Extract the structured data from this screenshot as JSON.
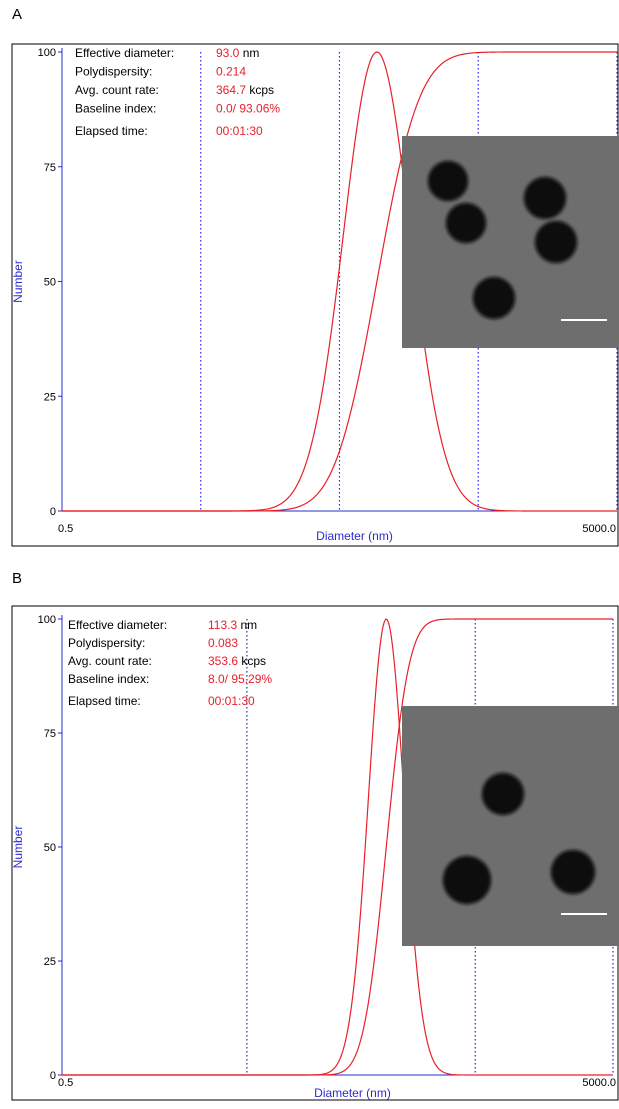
{
  "chart_data": [
    {
      "panel": "A",
      "type": "line",
      "xlabel": "Diameter (nm)",
      "ylabel": "Number",
      "x_scale": "log",
      "xlim": [
        0.5,
        5000.0
      ],
      "x_tick_labels": [
        "0.5",
        "5000.0"
      ],
      "ylim": [
        0,
        100
      ],
      "y_ticks": [
        0,
        25,
        50,
        75,
        100
      ],
      "info": [
        {
          "key": "Effective diameter:",
          "value": "93.0",
          "unit": "nm"
        },
        {
          "key": "Polydispersity:",
          "value": "0.214",
          "unit": ""
        },
        {
          "key": "Avg. count rate:",
          "value": "364.7",
          "unit": "kcps"
        },
        {
          "key": "Baseline index:",
          "value": "0.0/ 93.06%",
          "unit": ""
        },
        {
          "key": "Elapsed time:",
          "value": "00:01:30",
          "unit": ""
        }
      ],
      "distribution": {
        "peak_diameter": 93,
        "log10_sigma": 0.24,
        "peak_value": 100
      },
      "vertical_gridlines": [
        5,
        50,
        500,
        5000
      ],
      "inset": {
        "kind": "micrograph",
        "particles": 5,
        "scale_bar": true
      }
    },
    {
      "panel": "B",
      "type": "line",
      "xlabel": "Diameter (nm)",
      "ylabel": "Number",
      "x_scale": "log",
      "xlim": [
        0.5,
        5000.0
      ],
      "x_tick_labels": [
        "0.5",
        "5000.0"
      ],
      "ylim": [
        0,
        100
      ],
      "y_ticks": [
        0,
        25,
        50,
        75,
        100
      ],
      "info": [
        {
          "key": "Effective diameter:",
          "value": "113.3",
          "unit": "nm"
        },
        {
          "key": "Polydispersity:",
          "value": "0.083",
          "unit": ""
        },
        {
          "key": "Avg. count rate:",
          "value": "353.6",
          "unit": "kcps"
        },
        {
          "key": "Baseline index:",
          "value": "8.0/ 95.29%",
          "unit": ""
        },
        {
          "key": "Elapsed time:",
          "value": "00:01:30",
          "unit": ""
        }
      ],
      "distribution": {
        "peak_diameter": 113,
        "log10_sigma": 0.13,
        "peak_value": 100
      },
      "vertical_gridlines": [
        11,
        500,
        5000
      ],
      "inset": {
        "kind": "micrograph",
        "particles": 3,
        "scale_bar": true
      }
    }
  ],
  "colors": {
    "curve": "#e8202a",
    "axis": "#2b2bd0",
    "grid": "#2b2bd0",
    "frame": "#000000",
    "value_text": "#e8202a"
  }
}
